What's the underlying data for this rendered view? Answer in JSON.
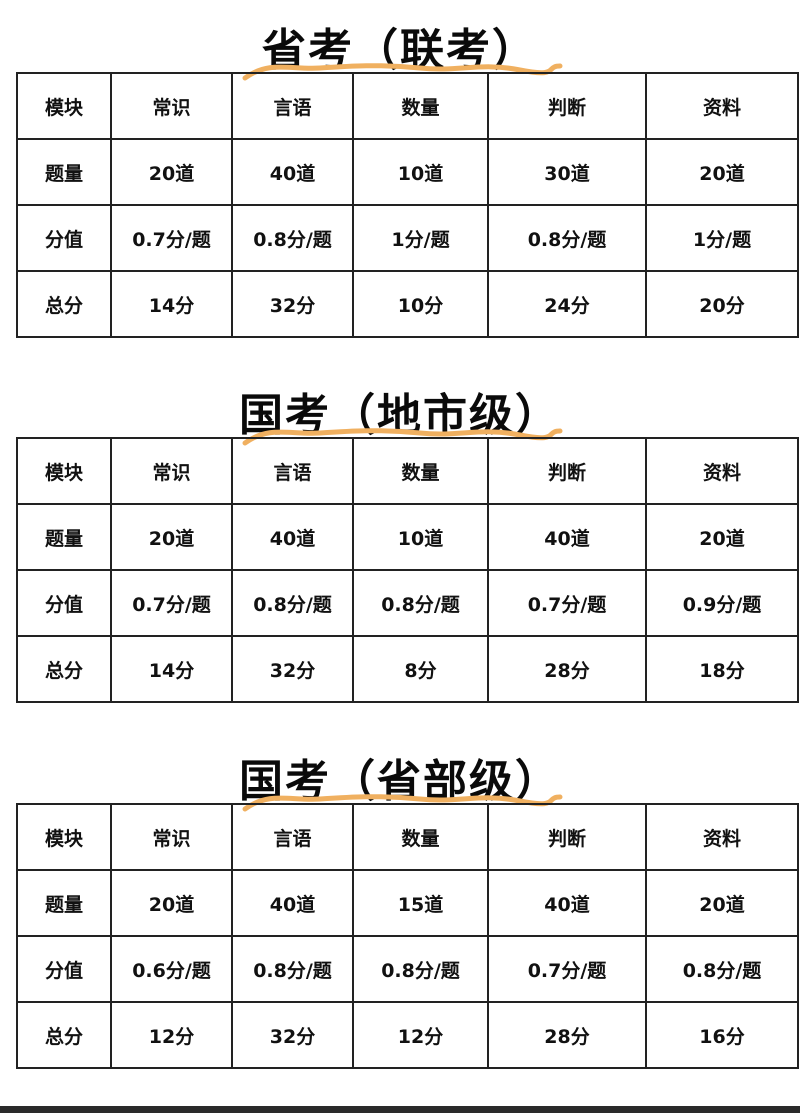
{
  "colors": {
    "underline": "#f0b060",
    "border": "#222222",
    "text": "#111111"
  },
  "tables": [
    {
      "title": "省考（联考）",
      "rows": [
        [
          "模块",
          "常识",
          "言语",
          "数量",
          "判断",
          "资料"
        ],
        [
          "题量",
          "20道",
          "40道",
          "10道",
          "30道",
          "20道"
        ],
        [
          "分值",
          "0.7分/题",
          "0.8分/题",
          "1分/题",
          "0.8分/题",
          "1分/题"
        ],
        [
          "总分",
          "14分",
          "32分",
          "10分",
          "24分",
          "20分"
        ]
      ]
    },
    {
      "title": "国考（地市级）",
      "rows": [
        [
          "模块",
          "常识",
          "言语",
          "数量",
          "判断",
          "资料"
        ],
        [
          "题量",
          "20道",
          "40道",
          "10道",
          "40道",
          "20道"
        ],
        [
          "分值",
          "0.7分/题",
          "0.8分/题",
          "0.8分/题",
          "0.7分/题",
          "0.9分/题"
        ],
        [
          "总分",
          "14分",
          "32分",
          "8分",
          "28分",
          "18分"
        ]
      ]
    },
    {
      "title": "国考（省部级）",
      "rows": [
        [
          "模块",
          "常识",
          "言语",
          "数量",
          "判断",
          "资料"
        ],
        [
          "题量",
          "20道",
          "40道",
          "15道",
          "40道",
          "20道"
        ],
        [
          "分值",
          "0.6分/题",
          "0.8分/题",
          "0.8分/题",
          "0.7分/题",
          "0.8分/题"
        ],
        [
          "总分",
          "12分",
          "32分",
          "12分",
          "28分",
          "16分"
        ]
      ]
    }
  ]
}
